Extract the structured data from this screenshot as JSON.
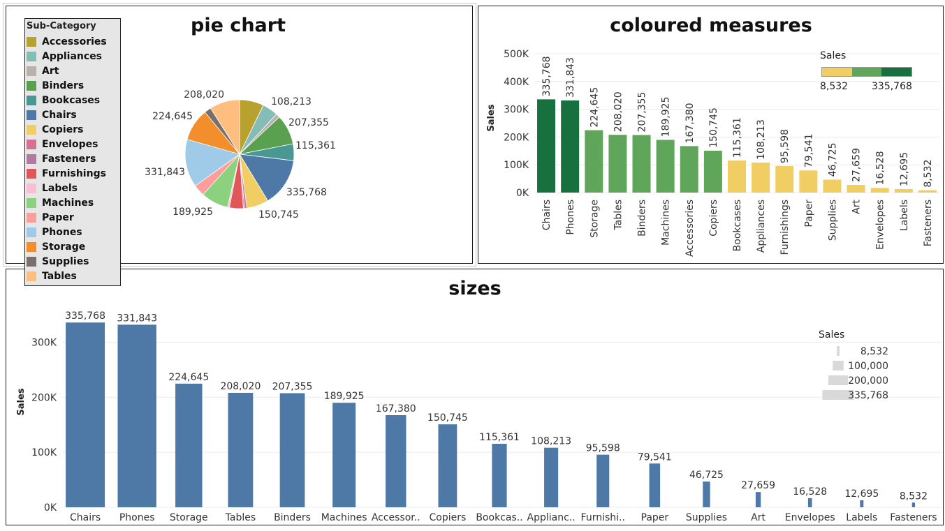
{
  "legend": {
    "title": "Sub-Category",
    "items": [
      {
        "label": "Accessories",
        "color": "#b9a12f"
      },
      {
        "label": "Appliances",
        "color": "#86bcb6"
      },
      {
        "label": "Art",
        "color": "#bab0ac"
      },
      {
        "label": "Binders",
        "color": "#59a14f"
      },
      {
        "label": "Bookcases",
        "color": "#499894"
      },
      {
        "label": "Chairs",
        "color": "#4e79a7"
      },
      {
        "label": "Copiers",
        "color": "#f1ce63"
      },
      {
        "label": "Envelopes",
        "color": "#d37295"
      },
      {
        "label": "Fasteners",
        "color": "#b07aa1"
      },
      {
        "label": "Furnishings",
        "color": "#e15759"
      },
      {
        "label": "Labels",
        "color": "#fabfd2"
      },
      {
        "label": "Machines",
        "color": "#8cd17d"
      },
      {
        "label": "Paper",
        "color": "#ff9d9a"
      },
      {
        "label": "Phones",
        "color": "#a0cbe8"
      },
      {
        "label": "Storage",
        "color": "#f28e2b"
      },
      {
        "label": "Supplies",
        "color": "#79706e"
      },
      {
        "label": "Tables",
        "color": "#ffbe7d"
      }
    ]
  },
  "chart_data": [
    {
      "type": "pie",
      "title": "pie chart",
      "slices": [
        {
          "category": "Accessories",
          "value": 167380
        },
        {
          "category": "Appliances",
          "value": 108213
        },
        {
          "category": "Art",
          "value": 27659
        },
        {
          "category": "Binders",
          "value": 207355
        },
        {
          "category": "Bookcases",
          "value": 115361
        },
        {
          "category": "Chairs",
          "value": 335768
        },
        {
          "category": "Copiers",
          "value": 150745
        },
        {
          "category": "Envelopes",
          "value": 16528
        },
        {
          "category": "Fasteners",
          "value": 8532
        },
        {
          "category": "Furnishings",
          "value": 95598
        },
        {
          "category": "Labels",
          "value": 12695
        },
        {
          "category": "Machines",
          "value": 189925
        },
        {
          "category": "Paper",
          "value": 79541
        },
        {
          "category": "Phones",
          "value": 331843
        },
        {
          "category": "Storage",
          "value": 224645
        },
        {
          "category": "Supplies",
          "value": 46725
        },
        {
          "category": "Tables",
          "value": 208020
        }
      ],
      "labeled_values": [
        "108,213",
        "207,355",
        "115,361",
        "335,768",
        "150,745",
        "189,925",
        "331,843",
        "224,645",
        "208,020"
      ]
    },
    {
      "type": "bar",
      "title": "coloured measures",
      "ylabel": "Sales",
      "ylim": [
        0,
        500000
      ],
      "yticks": [
        "0K",
        "100K",
        "200K",
        "300K",
        "400K",
        "500K"
      ],
      "categories": [
        "Chairs",
        "Phones",
        "Storage",
        "Tables",
        "Binders",
        "Machines",
        "Accessories",
        "Copiers",
        "Bookcases",
        "Appliances",
        "Furnishings",
        "Paper",
        "Supplies",
        "Art",
        "Envelopes",
        "Labels",
        "Fasteners"
      ],
      "values": [
        335768,
        331843,
        224645,
        208020,
        207355,
        189925,
        167380,
        150745,
        115361,
        108213,
        95598,
        79541,
        46725,
        27659,
        16528,
        12695,
        8532
      ],
      "value_labels": [
        "335,768",
        "331,843",
        "224,645",
        "208,020",
        "207,355",
        "189,925",
        "167,380",
        "150,745",
        "115,361",
        "108,213",
        "95,598",
        "79,541",
        "46,725",
        "27,659",
        "16,528",
        "12,695",
        "8,532"
      ],
      "color_legend": {
        "title": "Sales",
        "min_label": "8,532",
        "max_label": "335,768",
        "colors": [
          "#f1ce63",
          "#5fa55a",
          "#17703e"
        ]
      }
    },
    {
      "type": "bar",
      "title": "sizes",
      "ylabel": "Sales",
      "ylim": [
        0,
        350000
      ],
      "yticks": [
        "0K",
        "100K",
        "200K",
        "300K"
      ],
      "categories": [
        "Chairs",
        "Phones",
        "Storage",
        "Tables",
        "Binders",
        "Machines",
        "Accessor..",
        "Copiers",
        "Bookcas..",
        "Applianc..",
        "Furnishi..",
        "Paper",
        "Supplies",
        "Art",
        "Envelopes",
        "Labels",
        "Fasteners"
      ],
      "values": [
        335768,
        331843,
        224645,
        208020,
        207355,
        189925,
        167380,
        150745,
        115361,
        108213,
        95598,
        79541,
        46725,
        27659,
        16528,
        12695,
        8532
      ],
      "value_labels": [
        "335,768",
        "331,843",
        "224,645",
        "208,020",
        "207,355",
        "189,925",
        "167,380",
        "150,745",
        "115,361",
        "108,213",
        "95,598",
        "79,541",
        "46,725",
        "27,659",
        "16,528",
        "12,695",
        "8,532"
      ],
      "bar_color": "#4e79a7",
      "size_legend": {
        "title": "Sales",
        "labels": [
          "8,532",
          "100,000",
          "200,000",
          "335,768"
        ],
        "values": [
          8532,
          100000,
          200000,
          335768
        ]
      }
    }
  ]
}
